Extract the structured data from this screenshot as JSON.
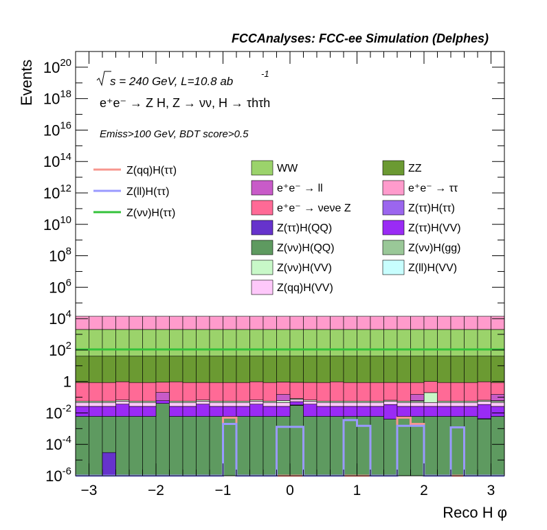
{
  "chart_data": {
    "type": "bar",
    "title": "FCCAnalyses: FCC-ee Simulation (Delphes)",
    "xlabel": "Reco H φ",
    "ylabel": "Events",
    "x_range": [
      -3.2,
      3.2
    ],
    "y_scale": "log",
    "y_range": [
      1e-06,
      1e+21
    ],
    "x_ticks": [
      -3,
      -2,
      -1,
      0,
      1,
      2,
      3
    ],
    "x_tick_labels": [
      "−3",
      "−2",
      "−1",
      "0",
      "1",
      "2",
      "3"
    ],
    "y_tick_labels": [
      {
        "v": 1e-06,
        "base": "10",
        "exp": "-6"
      },
      {
        "v": 0.0001,
        "base": "10",
        "exp": "-4"
      },
      {
        "v": 0.01,
        "base": "10",
        "exp": "-2"
      },
      {
        "v": 1,
        "base": "1",
        "exp": ""
      },
      {
        "v": 100.0,
        "base": "10",
        "exp": "2"
      },
      {
        "v": 10000.0,
        "base": "10",
        "exp": "4"
      },
      {
        "v": 1000000.0,
        "base": "10",
        "exp": "6"
      },
      {
        "v": 100000000.0,
        "base": "10",
        "exp": "8"
      },
      {
        "v": 10000000000.0,
        "base": "10",
        "exp": "10"
      },
      {
        "v": 1000000000000.0,
        "base": "10",
        "exp": "12"
      },
      {
        "v": 100000000000000.0,
        "base": "10",
        "exp": "14"
      },
      {
        "v": 1e+16,
        "base": "10",
        "exp": "16"
      },
      {
        "v": 1e+18,
        "base": "10",
        "exp": "18"
      },
      {
        "v": 1e+20,
        "base": "10",
        "exp": "20"
      }
    ],
    "annotations": {
      "line1": "s = 240 GeV, L=10.8 ab",
      "line1_sup": "-1",
      "line2": "e⁺e⁻ → Z H, Z → νν, H → τhτh",
      "line3": "Emiss>100 GeV, BDT score>0.5"
    },
    "n_bins": 32,
    "stack_boundaries_note": "cumulative stacked totals per bin, bottom to top",
    "stack": [
      {
        "name": "Z(νν)H(QQ)",
        "color": "#5e9a60",
        "values": [
          0.006,
          0.006,
          0.006,
          0.006,
          0.006,
          0.006,
          0.04,
          0.006,
          0.006,
          0.006,
          0.006,
          0.006,
          0.006,
          0.006,
          0.006,
          0.006,
          0.03,
          0.006,
          0.006,
          0.006,
          0.006,
          0.006,
          0.006,
          0.004,
          0.006,
          0.006,
          0.006,
          0.006,
          0.006,
          0.006,
          0.004,
          0.006
        ]
      },
      {
        "name": "Z(νν)H(gg)",
        "color": "#9ac898",
        "values": [
          0,
          0,
          0,
          0,
          0,
          0,
          0,
          0,
          0,
          0,
          0,
          0,
          0,
          0,
          0,
          0,
          0.002,
          0,
          0,
          0,
          0,
          0,
          0,
          0,
          0,
          0,
          0,
          0,
          0,
          0,
          0,
          0
        ]
      },
      {
        "name": "Z(ll)H(VV)",
        "color": "#c8fefe",
        "values": [
          0,
          0,
          0,
          0,
          0,
          0,
          0,
          0,
          0,
          0,
          0,
          0,
          0,
          0,
          0,
          0,
          0,
          0,
          0,
          0,
          0,
          0,
          0,
          0,
          0,
          0,
          0,
          0,
          0,
          0,
          0.0003,
          0
        ]
      },
      {
        "name": "Z(ττ)H(VV)",
        "color": "#9a2bf5",
        "values": [
          0.02,
          0.02,
          0.02,
          0.03,
          0.02,
          0.02,
          0.03,
          0.02,
          0.02,
          0.03,
          0.02,
          0.02,
          0.02,
          0.03,
          0.02,
          0.02,
          0.02,
          0.03,
          0.02,
          0.02,
          0.02,
          0.02,
          0.02,
          0.03,
          0.02,
          0.02,
          0.02,
          0.02,
          0.02,
          0.02,
          0.03,
          0.02
        ]
      },
      {
        "name": "Z(qq)H(VV)",
        "color": "#fec8fa",
        "values": [
          0.02,
          0.02,
          0.02,
          0.02,
          0.02,
          0.02,
          0.02,
          0.02,
          0.02,
          0.02,
          0.02,
          0.02,
          0.02,
          0.02,
          0.02,
          0.02,
          0.02,
          0.02,
          0.02,
          0.02,
          0.02,
          0.02,
          0.02,
          0.02,
          0.02,
          0.02,
          0.02,
          0.02,
          0.02,
          0.02,
          0.02,
          0.02
        ]
      },
      {
        "name": "Z(νν)H(VV)",
        "color": "#c8f8c8",
        "values": [
          0.01,
          0.01,
          0.01,
          0.01,
          0.01,
          0.01,
          0.01,
          0.01,
          0.01,
          0.01,
          0.01,
          0.01,
          0.01,
          0.01,
          0.01,
          0.08,
          0.01,
          0.01,
          0.01,
          0.01,
          0.01,
          0.01,
          0.01,
          0.01,
          0.01,
          0.01,
          0.15,
          0.01,
          0.01,
          0.01,
          0.01,
          0.01
        ]
      },
      {
        "name": "e⁺e⁻ → νeνe Z",
        "color": "#ff6a96",
        "values": [
          0.8,
          0.8,
          0.8,
          0.9,
          0.8,
          0.8,
          0.8,
          0.9,
          0.8,
          0.8,
          0.8,
          0.8,
          0.8,
          0.9,
          0.8,
          0.8,
          0.8,
          0.8,
          0.8,
          0.9,
          0.8,
          0.8,
          0.8,
          0.8,
          0.8,
          0.8,
          0.8,
          0.8,
          0.8,
          0.8,
          0.9,
          0.8
        ]
      },
      {
        "name": "ZZ",
        "color": "#6b9a32",
        "values": [
          40,
          40,
          40,
          40,
          40,
          40,
          40,
          40,
          40,
          40,
          40,
          40,
          40,
          40,
          40,
          40,
          40,
          40,
          40,
          40,
          40,
          40,
          40,
          40,
          40,
          40,
          40,
          40,
          40,
          40,
          40,
          40
        ]
      },
      {
        "name": "WW",
        "color": "#9bd36b",
        "values": [
          2000,
          2000,
          2000,
          2000,
          2000,
          2000,
          2000,
          2000,
          2000,
          2000,
          2000,
          2000,
          2000,
          2000,
          2000,
          2000,
          2000,
          2000,
          2000,
          2000,
          2000,
          2000,
          2000,
          2000,
          2000,
          2000,
          2000,
          2000,
          2000,
          2000,
          2000,
          2000
        ]
      },
      {
        "name": "e⁺e⁻ → ττ",
        "color": "#ff9bcc",
        "values": [
          12000,
          12000,
          12000,
          12000,
          12000,
          12000,
          12000,
          12000,
          12000,
          12000,
          12000,
          12000,
          12000,
          12000,
          12000,
          12000,
          12000,
          12000,
          12000,
          12000,
          12000,
          12000,
          12000,
          12000,
          12000,
          12000,
          12000,
          12000,
          12000,
          12000,
          12000,
          12000
        ]
      }
    ],
    "overlays": [
      {
        "name": "Z(qq)H(ττ)",
        "color": "#f7968e",
        "values": [
          1e-07,
          1e-07,
          1e-07,
          1e-07,
          1e-07,
          1e-07,
          1e-07,
          1e-07,
          1e-07,
          1e-07,
          1e-07,
          0.005,
          1e-07,
          1e-07,
          1e-07,
          1e-07,
          1e-07,
          1e-07,
          1e-07,
          1e-07,
          1e-07,
          1e-07,
          1e-07,
          1e-07,
          0.005,
          0.002,
          1e-07,
          1e-07,
          1e-07,
          1e-07,
          1e-07,
          1e-07
        ]
      },
      {
        "name": "Z(ll)H(ττ)",
        "color": "#9999ff",
        "values": [
          1e-07,
          1e-07,
          1e-07,
          1e-07,
          1e-07,
          1e-07,
          1e-07,
          1e-07,
          1e-07,
          1e-07,
          1e-07,
          0.002,
          1e-07,
          1e-07,
          1e-07,
          0.0013,
          0.0013,
          1e-07,
          1e-07,
          1e-07,
          0.0035,
          0.0015,
          1e-07,
          1e-07,
          0.0015,
          0.0015,
          1e-07,
          1e-07,
          0.0012,
          1e-07,
          1e-07,
          1e-07
        ]
      },
      {
        "name": "Z(νν)H(ττ)",
        "color": "#33c23a",
        "values": [
          110,
          110,
          110,
          110,
          110,
          110,
          110,
          110,
          110,
          110,
          110,
          110,
          110,
          110,
          110,
          110,
          110,
          110,
          110,
          110,
          110,
          110,
          110,
          110,
          110,
          110,
          110,
          110,
          110,
          110,
          110,
          110
        ]
      }
    ],
    "legend_lines": [
      {
        "label": "Z(qq)H(ττ)",
        "color": "#f7968e"
      },
      {
        "label": "Z(ll)H(ττ)",
        "color": "#9999ff"
      },
      {
        "label": "Z(νν)H(ττ)",
        "color": "#33c23a"
      }
    ],
    "legend_boxes": [
      {
        "label": "WW",
        "color": "#9bd36b"
      },
      {
        "label": "ZZ",
        "color": "#6b9a32"
      },
      {
        "label": "e⁺e⁻ → ll",
        "color": "#c85bc8"
      },
      {
        "label": "e⁺e⁻ → ττ",
        "color": "#ff9bcc"
      },
      {
        "label": "e⁺e⁻ → νeνe Z",
        "color": "#ff6a96"
      },
      {
        "label": "Z(ττ)H(ττ)",
        "color": "#9b66ee"
      },
      {
        "label": "Z(ττ)H(QQ)",
        "color": "#6633cc"
      },
      {
        "label": "Z(ττ)H(VV)",
        "color": "#9a2bf5"
      },
      {
        "label": "Z(νν)H(QQ)",
        "color": "#5e9a60"
      },
      {
        "label": "Z(νν)H(gg)",
        "color": "#9ac898"
      },
      {
        "label": "Z(νν)H(VV)",
        "color": "#c8f8c8"
      },
      {
        "label": "Z(ll)H(VV)",
        "color": "#c8fefe"
      },
      {
        "label": "Z(qq)H(VV)",
        "color": "#fec8fa"
      }
    ],
    "extra_bars": [
      {
        "name": "e⁺e⁻ → ll",
        "color": "#c85bc8",
        "bin": 6,
        "value": 0.2
      },
      {
        "name": "e⁺e⁻ → ll",
        "color": "#c85bc8",
        "bin": 15,
        "value": 0.15
      },
      {
        "name": "e⁺e⁻ → ll",
        "color": "#c85bc8",
        "bin": 25,
        "value": 0.15
      },
      {
        "name": "e⁺e⁻ → ll",
        "color": "#c85bc8",
        "bin": 31,
        "value": 0.15
      },
      {
        "name": "Z(ττ)H(QQ)",
        "color": "#6633cc",
        "bin": 2,
        "value": 3e-05
      }
    ]
  }
}
